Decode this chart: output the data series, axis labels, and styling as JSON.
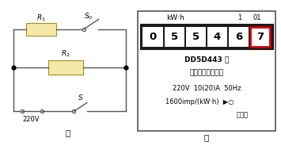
{
  "fig_width": 3.55,
  "fig_height": 1.84,
  "dpi": 100,
  "bg_color": "#ffffff",
  "left_panel": {
    "label": "甲",
    "resistor_color": "#f5e9a8",
    "resistor_border": "#a09020",
    "wire_color": "#555555",
    "R1_label": "$R_1$",
    "R2_label": "$R_2$",
    "S0_label": "$S_0$",
    "S_label": "$S$",
    "V_label": "220V"
  },
  "right_panel": {
    "label": "乙",
    "border_color": "#555555",
    "kwh_label": "kW·h",
    "small_label1": "1",
    "small_label2": "01",
    "digits": [
      "0",
      "5",
      "5",
      "4",
      "6",
      "7"
    ],
    "digit_bg": "#ffffff",
    "digit_border_normal": "#1a1a1a",
    "digit_border_red": "#cc0000",
    "red_digit_index": 5,
    "model_bold": "DD5D443",
    "model_rest": " 型",
    "model_line2": "电子式单相电能表",
    "spec_line": "220V  10(20)A  50Hz",
    "imp_line": "1600imp/(kW·h)  ▶○",
    "indicator_label": "指示灯"
  }
}
